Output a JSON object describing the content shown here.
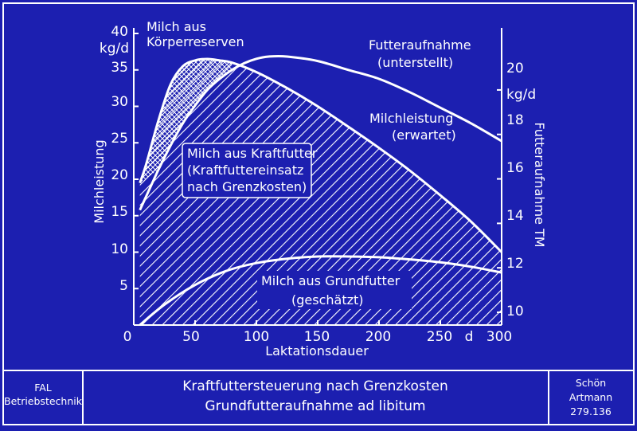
{
  "colors": {
    "background": "#1c1fb0",
    "foreground": "#ffffff"
  },
  "chart_data": {
    "type": "area",
    "x_axis": {
      "label": "Laktationsdauer",
      "unit": "d",
      "range": [
        0,
        300
      ],
      "ticks": [
        "0",
        "50",
        "100",
        "150",
        "200",
        "250",
        "300"
      ]
    },
    "y_left": {
      "label": "Milchleistung",
      "unit": "kg/d",
      "range": [
        0,
        40
      ],
      "ticks": [
        "5",
        "10",
        "15",
        "20",
        "25",
        "30",
        "35",
        "40"
      ]
    },
    "y_right": {
      "label": "Futteraufnahme TM",
      "unit": "kg/d",
      "range": [
        9.5,
        22
      ],
      "ticks": [
        "10",
        "12",
        "14",
        "16",
        "18",
        "20"
      ]
    },
    "series": [
      {
        "name": "Milchleistung (erwartet)",
        "axis": "left",
        "x": [
          5,
          10,
          20,
          30,
          40,
          50,
          60,
          70,
          80,
          100,
          125,
          150,
          175,
          200,
          225,
          250,
          275,
          300
        ],
        "y": [
          19.5,
          22,
          28,
          33,
          35.5,
          36.3,
          36.5,
          36.3,
          36,
          34.7,
          32.5,
          30,
          27.2,
          24.3,
          21.2,
          17.8,
          14.2,
          10
        ]
      },
      {
        "name": "Futteraufnahme (unterstellt)",
        "axis": "right",
        "x": [
          5,
          10,
          20,
          30,
          40,
          50,
          60,
          70,
          80,
          90,
          100,
          110,
          125,
          150,
          175,
          200,
          225,
          250,
          275,
          300
        ],
        "y": [
          14.6,
          15.2,
          16.4,
          17.5,
          18.5,
          19.3,
          20,
          20.5,
          20.9,
          21.2,
          21.4,
          21.5,
          21.5,
          21.3,
          20.9,
          20.5,
          19.9,
          19.2,
          18.5,
          17.7
        ]
      },
      {
        "name": "Milch aus Grundfutter (geschätzt)",
        "axis": "left",
        "x": [
          5,
          25,
          50,
          75,
          100,
          125,
          150,
          175,
          200,
          225,
          250,
          275,
          300
        ],
        "y": [
          0,
          2.8,
          5.5,
          7.4,
          8.5,
          9.1,
          9.4,
          9.4,
          9.3,
          9,
          8.6,
          8,
          7.2
        ]
      }
    ],
    "areas": [
      {
        "label": [
          "Milch aus",
          "Körperreserven"
        ]
      },
      {
        "label": [
          "Milch aus Kraftfutter",
          "(Kraftfuttereinsatz",
          "nach Grenzkosten)"
        ]
      },
      {
        "label": [
          "Milch aus Grundfutter",
          "(geschätzt)"
        ]
      }
    ],
    "curve_labels": {
      "intake": [
        "Futteraufnahme",
        "(unterstellt)"
      ],
      "milk": [
        "Milchleistung",
        "(erwartet)"
      ]
    }
  },
  "footer": {
    "left": [
      "FAL",
      "Betriebstechnik"
    ],
    "title": [
      "Kraftfuttersteuerung nach Grenzkosten",
      "Grundfutteraufnahme ad libitum"
    ],
    "right": [
      "Schön",
      "Artmann",
      "279.136"
    ]
  }
}
